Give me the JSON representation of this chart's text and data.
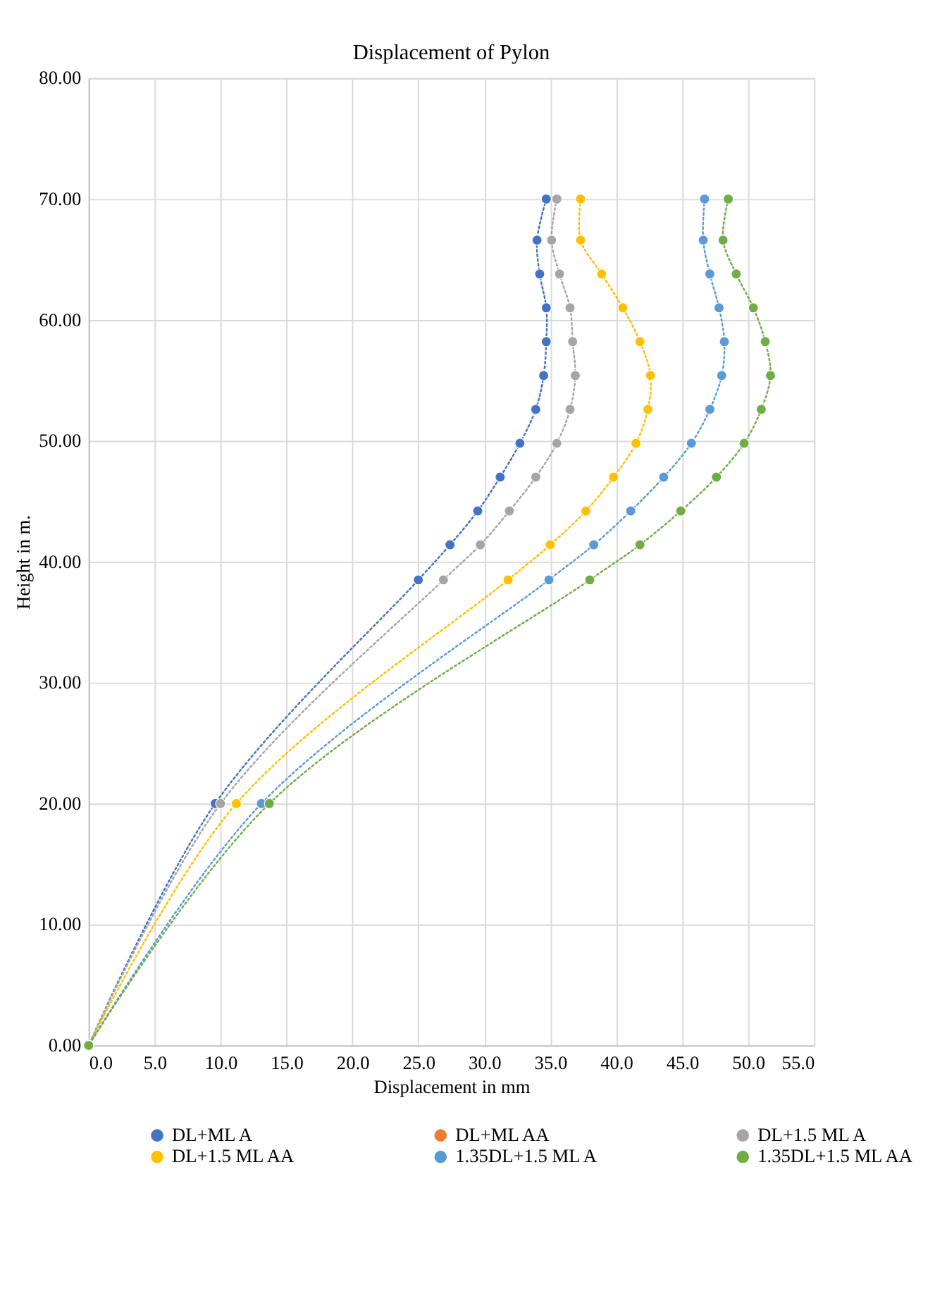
{
  "chart_data": {
    "type": "line",
    "title": "Displacement of Pylon",
    "xlabel": "Displacement in mm",
    "ylabel": "Height in m.",
    "xlim": [
      0,
      55
    ],
    "ylim": [
      0,
      80
    ],
    "xticks": [
      {
        "value": 0,
        "label": "0.0"
      },
      {
        "value": 5,
        "label": "5.0"
      },
      {
        "value": 10,
        "label": "10.0"
      },
      {
        "value": 15,
        "label": "15.0"
      },
      {
        "value": 20,
        "label": "20.0"
      },
      {
        "value": 25,
        "label": "25.0"
      },
      {
        "value": 30,
        "label": "30.0"
      },
      {
        "value": 35,
        "label": "35.0"
      },
      {
        "value": 40,
        "label": "40.0"
      },
      {
        "value": 45,
        "label": "45.0"
      },
      {
        "value": 50,
        "label": "50.0"
      },
      {
        "value": 55,
        "label": "55.0"
      }
    ],
    "yticks": [
      {
        "value": 0,
        "label": "0.00"
      },
      {
        "value": 10,
        "label": "10.00"
      },
      {
        "value": 20,
        "label": "20.00"
      },
      {
        "value": 30,
        "label": "30.00"
      },
      {
        "value": 40,
        "label": "40.00"
      },
      {
        "value": 50,
        "label": "50.00"
      },
      {
        "value": 60,
        "label": "60.00"
      },
      {
        "value": 70,
        "label": "70.00"
      },
      {
        "value": 80,
        "label": "80.00"
      }
    ],
    "grid": true,
    "legend": "bottom",
    "marker": "circle",
    "line_style": "dotted",
    "series": [
      {
        "name": "DL+ML A",
        "color": "#4472c4",
        "x": [
          34.7,
          34.0,
          34.2,
          34.7,
          34.7,
          34.5,
          33.9,
          32.7,
          31.2,
          29.5,
          27.4,
          25.0,
          9.6,
          0
        ],
        "values": [
          70,
          66.6,
          63.8,
          61.0,
          58.2,
          55.4,
          52.6,
          49.8,
          47.0,
          44.2,
          41.4,
          38.5,
          20,
          0
        ]
      },
      {
        "name": "DL+ML AA",
        "color": "#ed7d31",
        "x": [
          null
        ],
        "values": [
          null
        ]
      },
      {
        "name": "DL+1.5 ML A",
        "color": "#a5a5a5",
        "x": [
          35.5,
          35.1,
          35.7,
          36.5,
          36.7,
          36.9,
          36.5,
          35.5,
          33.9,
          31.9,
          29.7,
          26.9,
          10.0,
          0
        ],
        "values": [
          70,
          66.6,
          63.8,
          61.0,
          58.2,
          55.4,
          52.6,
          49.8,
          47.0,
          44.2,
          41.4,
          38.5,
          20,
          0
        ]
      },
      {
        "name": "DL+1.5 ML AA",
        "color": "#ffc000",
        "x": [
          37.3,
          37.3,
          38.9,
          40.5,
          41.8,
          42.6,
          42.4,
          41.5,
          39.8,
          37.7,
          35.0,
          31.8,
          11.2,
          0
        ],
        "values": [
          70,
          66.6,
          63.8,
          61.0,
          58.2,
          55.4,
          52.6,
          49.8,
          47.0,
          44.2,
          41.4,
          38.5,
          20,
          0
        ]
      },
      {
        "name": "1.35DL+1.5 ML A",
        "color": "#5b9bd5",
        "x": [
          46.7,
          46.6,
          47.1,
          47.8,
          48.2,
          48.0,
          47.1,
          45.7,
          43.6,
          41.1,
          38.3,
          34.9,
          13.1,
          0
        ],
        "values": [
          70,
          66.6,
          63.8,
          61.0,
          58.2,
          55.4,
          52.6,
          49.8,
          47.0,
          44.2,
          41.4,
          38.5,
          20,
          0
        ]
      },
      {
        "name": "1.35DL+1.5 ML AA",
        "color": "#70ad47",
        "x": [
          48.5,
          48.1,
          49.1,
          50.4,
          51.3,
          51.7,
          51.0,
          49.7,
          47.6,
          44.9,
          41.8,
          38.0,
          13.7,
          0
        ],
        "values": [
          70,
          66.6,
          63.8,
          61.0,
          58.2,
          55.4,
          52.6,
          49.8,
          47.0,
          44.2,
          41.4,
          38.5,
          20,
          0
        ]
      }
    ]
  }
}
